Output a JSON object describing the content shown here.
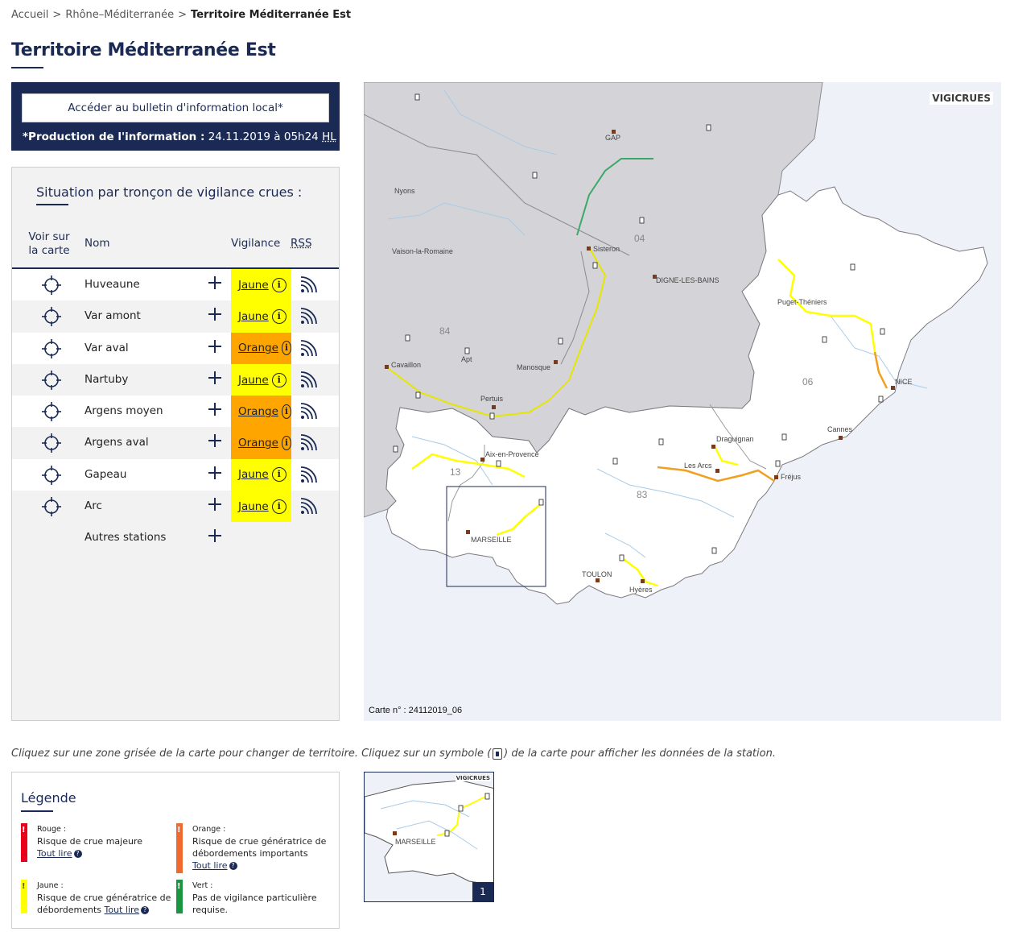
{
  "breadcrumb": {
    "home": "Accueil",
    "region": "Rhône–Méditerranée",
    "current": "Territoire Méditerranée Est",
    "separator": ">"
  },
  "page_title": "Territoire Méditerranée Est",
  "bulletin": {
    "button_label": "Accéder au bulletin d'information local*",
    "production_label": "*Production de l'information :",
    "production_value": "24.11.2019 à 05h24",
    "production_tz": "HL"
  },
  "situation": {
    "title": "Situation par tronçon de vigilance crues :",
    "columns": {
      "voir": "Voir sur la carte",
      "nom": "Nom",
      "vigilance": "Vigilance",
      "rss": "RSS"
    },
    "rows": [
      {
        "name": "Huveaune",
        "level": "Jaune",
        "color": "#ffff00"
      },
      {
        "name": "Var amont",
        "level": "Jaune",
        "color": "#ffff00"
      },
      {
        "name": "Var aval",
        "level": "Orange",
        "color": "#ffa500"
      },
      {
        "name": "Nartuby",
        "level": "Jaune",
        "color": "#ffff00"
      },
      {
        "name": "Argens moyen",
        "level": "Orange",
        "color": "#ffa500"
      },
      {
        "name": "Argens aval",
        "level": "Orange",
        "color": "#ffa500"
      },
      {
        "name": "Gapeau",
        "level": "Jaune",
        "color": "#ffff00"
      },
      {
        "name": "Arc",
        "level": "Jaune",
        "color": "#ffff00"
      }
    ],
    "other_stations": "Autres stations"
  },
  "map": {
    "logo": "VIGICRUES",
    "carte_number": "Carte n° : 24112019_06",
    "places": [
      "GAP",
      "Nyons",
      "Vaison-la-Romaine",
      "Sisteron",
      "DIGNE-LES-BAINS",
      "Puget-Théniers",
      "Cavaillon",
      "Apt",
      "Manosque",
      "Pertuis",
      "NICE",
      "Cannes",
      "Draguignan",
      "Aix-en-Provence",
      "Les Arcs",
      "Fréjus",
      "MARSEILLE",
      "TOULON",
      "Hyères"
    ],
    "departments": [
      "04",
      "84",
      "06",
      "13",
      "83"
    ],
    "colors": {
      "grey_zone": "#d4d4d8",
      "white_zone": "#ffffff",
      "sea": "#eef2f8",
      "river": "#a9cbe6",
      "yellow": "#ffff00",
      "orange": "#f0a020",
      "green": "#3aa86a"
    }
  },
  "instructions": {
    "before": "Cliquez sur une zone grisée de la carte pour changer de territoire. Cliquez sur un symbole (",
    "after": ") de la carte pour afficher les données de la station."
  },
  "legend": {
    "title": "Légende",
    "items": [
      {
        "name": "Rouge :",
        "desc": "Risque de crue majeure",
        "link": "Tout lire",
        "color": "#e8001c"
      },
      {
        "name": "Orange :",
        "desc": "Risque de crue génératrice de débordements importants",
        "link": "Tout lire",
        "color": "#f06a30"
      },
      {
        "name": "Jaune :",
        "desc": "Risque de crue génératrice de débordements",
        "link": "Tout lire",
        "color": "#ffff00"
      },
      {
        "name": "Vert :",
        "desc": "Pas de vigilance particulière requise.",
        "link": "",
        "color": "#1a9641"
      }
    ]
  },
  "thumbnail": {
    "logo": "VIGICRUES",
    "place": "MARSEILLE",
    "number": "1"
  }
}
